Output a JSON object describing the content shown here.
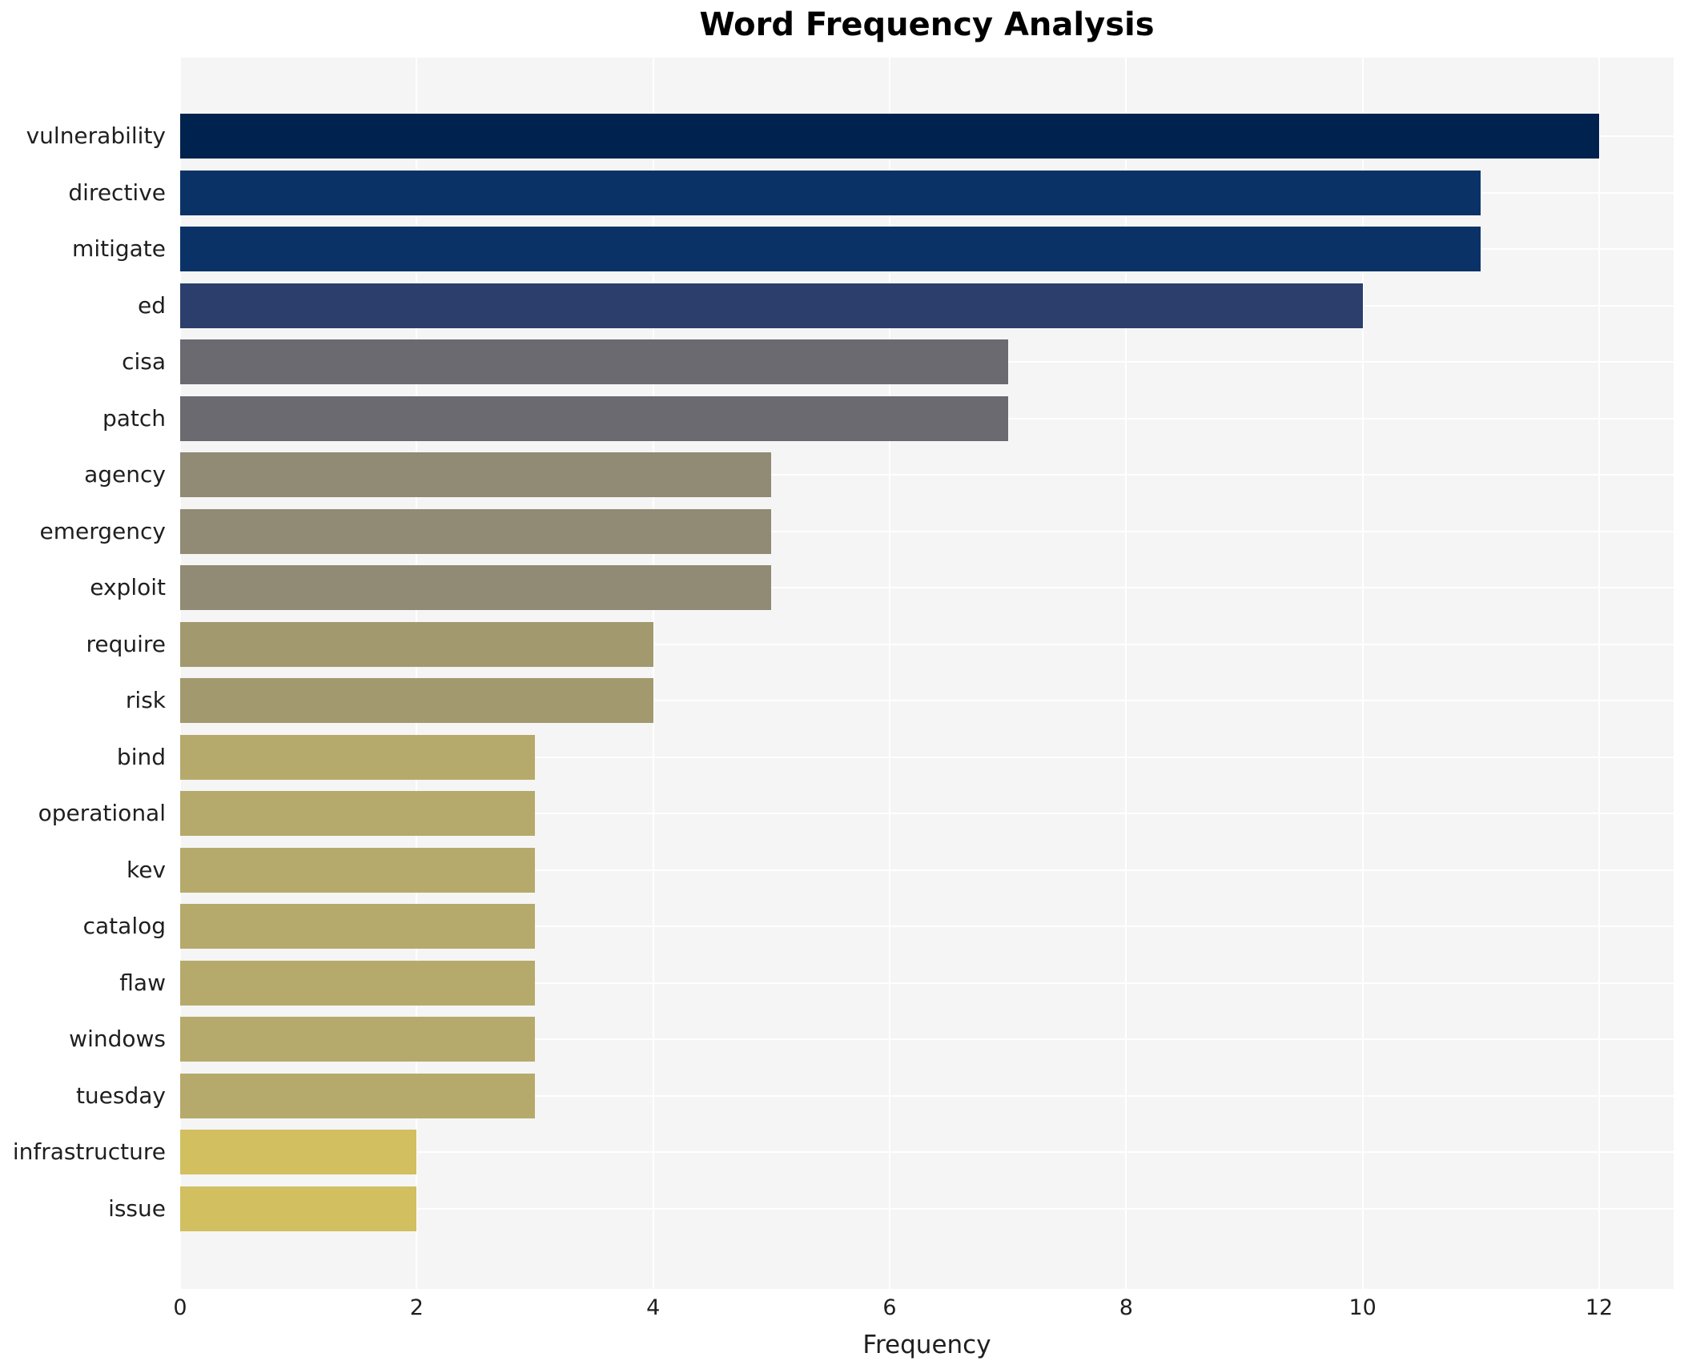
{
  "chart_data": {
    "type": "bar",
    "orientation": "horizontal",
    "title": "Word Frequency Analysis",
    "xlabel": "Frequency",
    "ylabel": "",
    "categories": [
      "vulnerability",
      "directive",
      "mitigate",
      "ed",
      "cisa",
      "patch",
      "agency",
      "emergency",
      "exploit",
      "require",
      "risk",
      "bind",
      "operational",
      "kev",
      "catalog",
      "flaw",
      "windows",
      "tuesday",
      "infrastructure",
      "issue"
    ],
    "values": [
      12,
      11,
      11,
      10,
      7,
      7,
      5,
      5,
      5,
      4,
      4,
      3,
      3,
      3,
      3,
      3,
      3,
      3,
      2,
      2
    ],
    "bar_colors": [
      "#00224e",
      "#0a3266",
      "#0a3266",
      "#2c3f6c",
      "#6a6a70",
      "#6a6a70",
      "#918a74",
      "#918a74",
      "#918a74",
      "#a29a6e",
      "#a29a6e",
      "#b5aa6b",
      "#b5aa6b",
      "#b5aa6b",
      "#b5aa6b",
      "#b5aa6b",
      "#b5aa6b",
      "#b5aa6b",
      "#d2bf5f",
      "#d2bf5f"
    ],
    "x_ticks": [
      0,
      2,
      4,
      6,
      8,
      10,
      12
    ],
    "xlim": [
      0,
      12.63
    ],
    "grid": true,
    "legend_position": "none",
    "colormap": "cividis (value-mapped, high=dark blue, low=yellow)",
    "plot_bg_color": "#f5f5f6",
    "grid_color": "#ffffff",
    "text_color": "#1f1f1f",
    "title_color": "#000000"
  }
}
